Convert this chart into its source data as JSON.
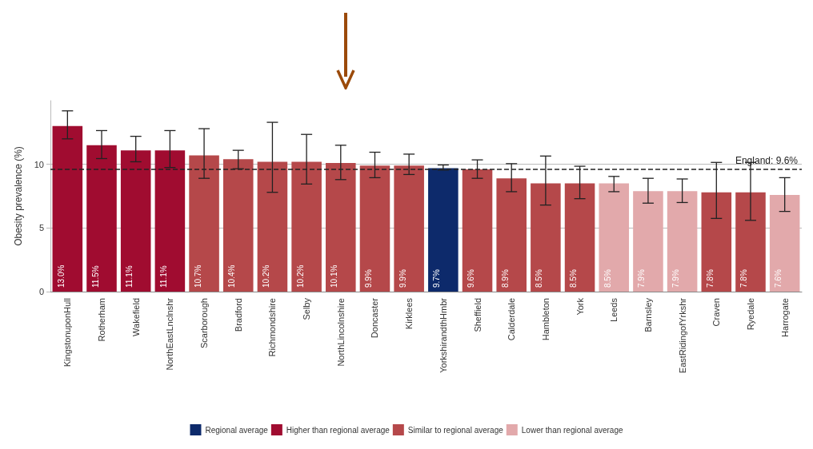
{
  "chart_data": {
    "type": "bar",
    "stacked": true,
    "ylabel": "Obesity prevalence (%)",
    "categories": [
      "KingstonuponHull",
      "Rotherham",
      "Wakefield",
      "NorthEastLnclnshr",
      "Scarborough",
      "Bradford",
      "Richmondshire",
      "Selby",
      "NorthLincolnshire",
      "Doncaster",
      "Kirklees",
      "YorkshirandthHmbr",
      "Sheffield",
      "Calderdale",
      "Hambleton",
      "York",
      "Leeds",
      "Barnsley",
      "EastRidingofYrkshr",
      "Craven",
      "Ryedale",
      "Harrogate"
    ],
    "series": [
      {
        "name": "Regional average",
        "color": "#0d2a6b",
        "values": [
          null,
          null,
          null,
          null,
          null,
          null,
          null,
          null,
          null,
          null,
          null,
          9.7,
          null,
          null,
          null,
          null,
          null,
          null,
          null,
          null,
          null,
          null
        ],
        "value_labels": [
          null,
          null,
          null,
          null,
          null,
          null,
          null,
          null,
          null,
          null,
          null,
          "9.7%",
          null,
          null,
          null,
          null,
          null,
          null,
          null,
          null,
          null,
          null
        ],
        "errors": [
          null,
          null,
          null,
          null,
          null,
          null,
          null,
          null,
          null,
          null,
          null,
          [
            9.55,
            9.95
          ],
          null,
          null,
          null,
          null,
          null,
          null,
          null,
          null,
          null,
          null
        ]
      },
      {
        "name": "Higher than regional average",
        "color": "#a00c30",
        "values": [
          13.0,
          11.5,
          11.1,
          11.1,
          null,
          null,
          null,
          null,
          null,
          null,
          null,
          null,
          null,
          null,
          null,
          null,
          null,
          null,
          null,
          null,
          null,
          null
        ],
        "value_labels": [
          "13.0%",
          "11.5%",
          "11.1%",
          "11.1%",
          null,
          null,
          null,
          null,
          null,
          null,
          null,
          null,
          null,
          null,
          null,
          null,
          null,
          null,
          null,
          null,
          null,
          null
        ],
        "errors": [
          [
            12.0,
            14.2
          ],
          [
            10.45,
            12.65
          ],
          [
            10.2,
            12.2
          ],
          [
            9.75,
            12.65
          ],
          null,
          null,
          null,
          null,
          null,
          null,
          null,
          null,
          null,
          null,
          null,
          null,
          null,
          null,
          null,
          null,
          null,
          null
        ]
      },
      {
        "name": "Similar to regional average",
        "color": "#b5484a",
        "values": [
          null,
          null,
          null,
          null,
          10.7,
          10.4,
          10.2,
          10.2,
          10.1,
          9.9,
          9.9,
          null,
          9.6,
          8.9,
          8.5,
          8.5,
          null,
          null,
          null,
          7.8,
          7.8,
          null
        ],
        "value_labels": [
          null,
          null,
          null,
          null,
          "10.7%",
          "10.4%",
          "10.2%",
          "10.2%",
          "10.1%",
          "9.9%",
          "9.9%",
          null,
          "9.6%",
          "8.9%",
          "8.5%",
          "8.5%",
          null,
          null,
          null,
          "7.8%",
          "7.8%",
          null
        ],
        "errors": [
          null,
          null,
          null,
          null,
          [
            8.9,
            12.8
          ],
          [
            9.65,
            11.1
          ],
          [
            7.8,
            13.3
          ],
          [
            8.45,
            12.35
          ],
          [
            8.8,
            11.5
          ],
          [
            8.95,
            10.95
          ],
          [
            9.2,
            10.8
          ],
          null,
          [
            8.9,
            10.35
          ],
          [
            7.85,
            10.05
          ],
          [
            6.8,
            10.65
          ],
          [
            7.3,
            9.85
          ],
          null,
          null,
          null,
          [
            5.75,
            10.15
          ],
          [
            5.6,
            10.15
          ],
          null
        ]
      },
      {
        "name": "Lower than regional average",
        "color": "#e2a9ab",
        "values": [
          null,
          null,
          null,
          null,
          null,
          null,
          null,
          null,
          null,
          null,
          null,
          null,
          null,
          null,
          null,
          null,
          8.5,
          7.9,
          7.9,
          null,
          null,
          7.6
        ],
        "value_labels": [
          null,
          null,
          null,
          null,
          null,
          null,
          null,
          null,
          null,
          null,
          null,
          null,
          null,
          null,
          null,
          null,
          "8.5%",
          "7.9%",
          "7.9%",
          null,
          null,
          "7.6%"
        ],
        "errors": [
          null,
          null,
          null,
          null,
          null,
          null,
          null,
          null,
          null,
          null,
          null,
          null,
          null,
          null,
          null,
          null,
          [
            7.85,
            9.05
          ],
          [
            6.95,
            8.9
          ],
          [
            7.0,
            8.85
          ],
          null,
          null,
          [
            6.3,
            8.95
          ]
        ]
      }
    ],
    "ylim": [
      0,
      15
    ],
    "yticks": [
      0,
      5,
      10
    ],
    "grid": "y",
    "legend": "bottom",
    "ref_lines": [
      {
        "axis": "y",
        "value": 9.6,
        "label": "England: 9.6%",
        "line_style": "dashed",
        "color": "#222222"
      }
    ]
  }
}
